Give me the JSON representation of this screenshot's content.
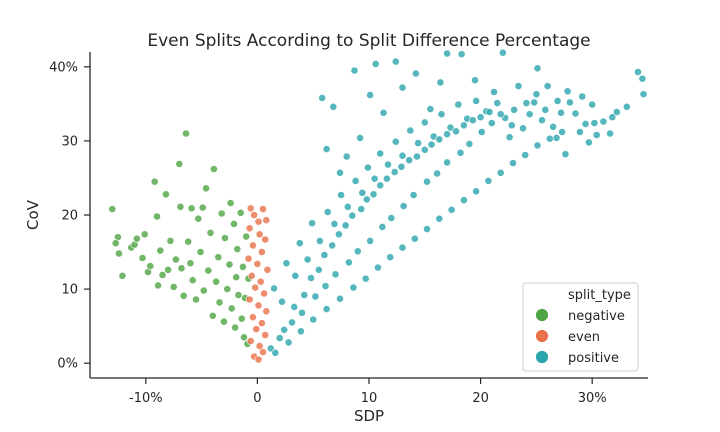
{
  "chart_data": {
    "type": "scatter",
    "title": "Even Splits According to Split Difference Percentage",
    "xlabel": "SDP",
    "ylabel": "CoV",
    "xlim": [
      -15,
      35
    ],
    "ylim": [
      -2,
      42
    ],
    "x_ticks": [
      {
        "value": -10,
        "label": "-10%"
      },
      {
        "value": 0,
        "label": "0"
      },
      {
        "value": 10,
        "label": "10"
      },
      {
        "value": 20,
        "label": "20"
      },
      {
        "value": 30,
        "label": "30%"
      }
    ],
    "y_ticks": [
      {
        "value": 0,
        "label": "0%"
      },
      {
        "value": 10,
        "label": "10"
      },
      {
        "value": 20,
        "label": "20"
      },
      {
        "value": 30,
        "label": "30"
      },
      {
        "value": 40,
        "label": "40%"
      }
    ],
    "grid": false,
    "legend": {
      "title": "split_type",
      "placement": "lower-right"
    },
    "series": [
      {
        "name": "negative",
        "color": "#4ea444",
        "points": [
          [
            -13.0,
            20.8
          ],
          [
            -12.5,
            17.0
          ],
          [
            -12.7,
            16.2
          ],
          [
            -12.4,
            14.8
          ],
          [
            -12.1,
            11.8
          ],
          [
            -11.3,
            15.6
          ],
          [
            -11.0,
            16.0
          ],
          [
            -10.8,
            16.8
          ],
          [
            -10.3,
            14.2
          ],
          [
            -10.1,
            17.4
          ],
          [
            -9.8,
            12.3
          ],
          [
            -9.6,
            13.1
          ],
          [
            -9.2,
            24.5
          ],
          [
            -9.0,
            19.8
          ],
          [
            -8.9,
            10.5
          ],
          [
            -8.7,
            15.2
          ],
          [
            -8.5,
            11.9
          ],
          [
            -8.2,
            22.8
          ],
          [
            -8.0,
            12.6
          ],
          [
            -7.8,
            16.5
          ],
          [
            -7.5,
            10.3
          ],
          [
            -7.3,
            14.0
          ],
          [
            -7.0,
            26.9
          ],
          [
            -6.9,
            21.1
          ],
          [
            -6.8,
            12.8
          ],
          [
            -6.6,
            9.1
          ],
          [
            -6.4,
            31.0
          ],
          [
            -6.2,
            16.4
          ],
          [
            -6.0,
            13.5
          ],
          [
            -5.9,
            20.9
          ],
          [
            -5.8,
            11.2
          ],
          [
            -5.5,
            8.6
          ],
          [
            -5.3,
            19.5
          ],
          [
            -5.1,
            15.0
          ],
          [
            -4.9,
            21.0
          ],
          [
            -4.8,
            9.8
          ],
          [
            -4.6,
            23.6
          ],
          [
            -4.4,
            12.5
          ],
          [
            -4.2,
            17.6
          ],
          [
            -4.0,
            6.4
          ],
          [
            -3.9,
            26.2
          ],
          [
            -3.7,
            11.0
          ],
          [
            -3.5,
            14.3
          ],
          [
            -3.4,
            8.2
          ],
          [
            -3.2,
            20.2
          ],
          [
            -3.0,
            5.6
          ],
          [
            -2.9,
            16.9
          ],
          [
            -2.7,
            10.0
          ],
          [
            -2.5,
            13.3
          ],
          [
            -2.4,
            21.6
          ],
          [
            -2.3,
            7.4
          ],
          [
            -2.1,
            18.8
          ],
          [
            -2.0,
            4.8
          ],
          [
            -1.9,
            11.6
          ],
          [
            -1.8,
            15.4
          ],
          [
            -1.7,
            9.2
          ],
          [
            -1.5,
            20.3
          ],
          [
            -1.4,
            6.0
          ],
          [
            -1.3,
            13.0
          ],
          [
            -1.2,
            3.5
          ],
          [
            -1.1,
            8.8
          ],
          [
            -1.0,
            17.1
          ],
          [
            -0.9,
            2.6
          ],
          [
            -0.8,
            11.4
          ]
        ]
      },
      {
        "name": "even",
        "color": "#e8704a",
        "points": [
          [
            -0.6,
            20.9
          ],
          [
            -0.3,
            20.0
          ],
          [
            0.1,
            19.1
          ],
          [
            0.5,
            20.8
          ],
          [
            0.8,
            19.3
          ],
          [
            -0.7,
            18.2
          ],
          [
            0.2,
            17.4
          ],
          [
            0.7,
            16.7
          ],
          [
            -0.4,
            15.9
          ],
          [
            0.4,
            15.0
          ],
          [
            -0.8,
            14.1
          ],
          [
            0.0,
            13.4
          ],
          [
            0.9,
            12.6
          ],
          [
            -0.5,
            11.8
          ],
          [
            0.3,
            11.0
          ],
          [
            -0.2,
            10.2
          ],
          [
            0.6,
            9.4
          ],
          [
            -0.7,
            8.6
          ],
          [
            0.1,
            7.8
          ],
          [
            0.8,
            7.0
          ],
          [
            -0.4,
            6.2
          ],
          [
            0.4,
            5.4
          ],
          [
            -0.1,
            4.6
          ],
          [
            0.7,
            3.8
          ],
          [
            -0.6,
            3.0
          ],
          [
            0.2,
            2.3
          ],
          [
            0.5,
            1.5
          ],
          [
            -0.3,
            0.9
          ],
          [
            0.1,
            0.5
          ]
        ]
      },
      {
        "name": "positive",
        "color": "#2aa5ac",
        "points": [
          [
            1.2,
            2.0
          ],
          [
            2.0,
            3.4
          ],
          [
            3.1,
            5.5
          ],
          [
            4.0,
            6.8
          ],
          [
            5.2,
            9.0
          ],
          [
            6.1,
            10.4
          ],
          [
            7.0,
            12.0
          ],
          [
            8.2,
            13.6
          ],
          [
            9.0,
            15.1
          ],
          [
            10.1,
            16.5
          ],
          [
            11.2,
            18.4
          ],
          [
            12.0,
            19.6
          ],
          [
            13.1,
            21.2
          ],
          [
            14.0,
            22.7
          ],
          [
            15.2,
            24.5
          ],
          [
            16.1,
            25.6
          ],
          [
            17.0,
            27.1
          ],
          [
            18.2,
            28.4
          ],
          [
            19.0,
            29.6
          ],
          [
            20.1,
            31.2
          ],
          [
            21.0,
            32.4
          ],
          [
            22.2,
            33.1
          ],
          [
            23.0,
            34.2
          ],
          [
            24.1,
            35.1
          ],
          [
            25.0,
            36.3
          ],
          [
            26.0,
            37.4
          ],
          [
            27.2,
            33.8
          ],
          [
            28.0,
            35.2
          ],
          [
            29.1,
            36.0
          ],
          [
            30.0,
            34.9
          ],
          [
            31.0,
            32.6
          ],
          [
            32.2,
            33.9
          ],
          [
            33.1,
            34.6
          ],
          [
            34.1,
            39.3
          ],
          [
            34.6,
            36.3
          ],
          [
            34.5,
            38.4
          ],
          [
            5.8,
            35.8
          ],
          [
            6.8,
            34.6
          ],
          [
            8.7,
            39.5
          ],
          [
            10.6,
            40.4
          ],
          [
            12.4,
            40.7
          ],
          [
            17.0,
            41.8
          ],
          [
            18.3,
            41.7
          ],
          [
            22.0,
            41.9
          ],
          [
            25.1,
            39.8
          ],
          [
            6.2,
            28.9
          ],
          [
            7.4,
            25.7
          ],
          [
            8.0,
            27.9
          ],
          [
            9.2,
            30.4
          ],
          [
            10.1,
            36.2
          ],
          [
            11.3,
            33.8
          ],
          [
            13.0,
            37.2
          ],
          [
            14.2,
            39.1
          ],
          [
            15.5,
            34.3
          ],
          [
            16.4,
            37.9
          ],
          [
            19.5,
            38.2
          ],
          [
            21.2,
            36.6
          ],
          [
            23.4,
            37.4
          ],
          [
            24.8,
            35.2
          ],
          [
            26.5,
            31.9
          ],
          [
            27.8,
            36.7
          ],
          [
            28.9,
            31.2
          ],
          [
            29.7,
            29.8
          ],
          [
            30.4,
            30.8
          ],
          [
            1.5,
            10.1
          ],
          [
            2.2,
            8.3
          ],
          [
            2.6,
            13.5
          ],
          [
            3.4,
            11.8
          ],
          [
            3.8,
            16.2
          ],
          [
            4.5,
            14.0
          ],
          [
            4.9,
            18.9
          ],
          [
            5.6,
            16.5
          ],
          [
            6.3,
            20.4
          ],
          [
            6.9,
            18.8
          ],
          [
            7.5,
            22.7
          ],
          [
            8.1,
            21.1
          ],
          [
            8.8,
            24.6
          ],
          [
            9.4,
            23.0
          ],
          [
            9.9,
            26.4
          ],
          [
            10.5,
            24.9
          ],
          [
            11.0,
            28.3
          ],
          [
            11.7,
            26.8
          ],
          [
            12.4,
            29.9
          ],
          [
            13.0,
            28.0
          ],
          [
            13.7,
            31.4
          ],
          [
            14.4,
            29.7
          ],
          [
            15.0,
            32.5
          ],
          [
            15.8,
            30.6
          ],
          [
            16.5,
            33.6
          ],
          [
            17.3,
            31.8
          ],
          [
            18.0,
            34.9
          ],
          [
            18.8,
            33.0
          ],
          [
            19.6,
            35.4
          ],
          [
            20.5,
            34.0
          ],
          [
            21.5,
            35.1
          ],
          [
            22.6,
            30.5
          ],
          [
            23.8,
            31.7
          ],
          [
            25.5,
            32.8
          ],
          [
            26.8,
            30.4
          ],
          [
            27.6,
            28.2
          ],
          [
            29.4,
            32.3
          ],
          [
            31.6,
            31.0
          ],
          [
            2.4,
            4.5
          ],
          [
            3.3,
            7.6
          ],
          [
            4.2,
            9.2
          ],
          [
            4.8,
            11.5
          ],
          [
            5.5,
            12.6
          ],
          [
            6.0,
            14.6
          ],
          [
            6.7,
            15.9
          ],
          [
            7.3,
            17.4
          ],
          [
            7.9,
            18.6
          ],
          [
            8.5,
            19.9
          ],
          [
            9.3,
            20.8
          ],
          [
            9.8,
            22.1
          ],
          [
            10.4,
            22.8
          ],
          [
            11.0,
            24.0
          ],
          [
            11.6,
            24.9
          ],
          [
            12.3,
            25.8
          ],
          [
            12.9,
            26.5
          ],
          [
            13.6,
            27.4
          ],
          [
            14.3,
            27.9
          ],
          [
            15.0,
            28.8
          ],
          [
            15.6,
            29.5
          ],
          [
            16.3,
            30.2
          ],
          [
            17.0,
            30.9
          ],
          [
            17.8,
            31.3
          ],
          [
            18.5,
            32.1
          ],
          [
            19.3,
            32.8
          ],
          [
            20.0,
            33.2
          ],
          [
            20.8,
            33.9
          ],
          [
            21.8,
            33.6
          ],
          [
            22.8,
            32.1
          ],
          [
            24.4,
            33.6
          ],
          [
            25.8,
            34.2
          ],
          [
            26.9,
            35.4
          ],
          [
            28.5,
            33.7
          ],
          [
            30.2,
            32.4
          ],
          [
            31.8,
            33.2
          ],
          [
            1.6,
            1.4
          ],
          [
            2.8,
            2.8
          ],
          [
            3.9,
            4.3
          ],
          [
            5.0,
            5.9
          ],
          [
            6.2,
            7.3
          ],
          [
            7.4,
            8.7
          ],
          [
            8.6,
            10.2
          ],
          [
            9.7,
            11.4
          ],
          [
            10.8,
            12.9
          ],
          [
            11.9,
            14.3
          ],
          [
            13.0,
            15.6
          ],
          [
            14.1,
            16.8
          ],
          [
            15.2,
            18.1
          ],
          [
            16.3,
            19.5
          ],
          [
            17.4,
            20.7
          ],
          [
            18.5,
            22.0
          ],
          [
            19.6,
            23.2
          ],
          [
            20.7,
            24.6
          ],
          [
            21.8,
            25.7
          ],
          [
            22.9,
            27.0
          ],
          [
            24.0,
            28.1
          ],
          [
            25.1,
            29.4
          ],
          [
            26.2,
            30.3
          ],
          [
            27.3,
            31.2
          ]
        ]
      }
    ]
  }
}
